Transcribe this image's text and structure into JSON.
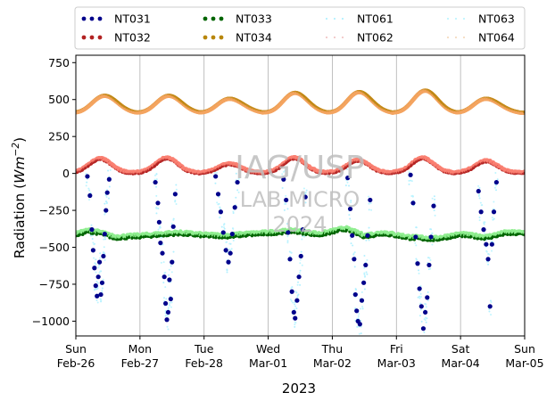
{
  "chart_data": {
    "type": "scatter",
    "xlabel": "2023",
    "ylabel_prefix": "Radiation (",
    "ylabel_unit_w": "Wm",
    "ylabel_unit_exp": "−2",
    "ylabel_suffix": ")",
    "ylim": [
      -1100,
      800
    ],
    "yticks": [
      -1000,
      -750,
      -500,
      -250,
      0,
      250,
      500,
      750
    ],
    "ytick_labels": [
      "−1000",
      "−750",
      "−500",
      "−250",
      "0",
      "250",
      "500",
      "750"
    ],
    "xlim": [
      0,
      7
    ],
    "x_unit": "days since Sun Feb-26 00:00",
    "xticks": [
      {
        "x": 0,
        "day": "Sun",
        "date": "Feb-26"
      },
      {
        "x": 1,
        "day": "Mon",
        "date": "Feb-27"
      },
      {
        "x": 2,
        "day": "Tue",
        "date": "Feb-28"
      },
      {
        "x": 3,
        "day": "Wed",
        "date": "Mar-01"
      },
      {
        "x": 4,
        "day": "Thu",
        "date": "Mar-02"
      },
      {
        "x": 5,
        "day": "Fri",
        "date": "Mar-03"
      },
      {
        "x": 6,
        "day": "Sat",
        "date": "Mar-04"
      },
      {
        "x": 7,
        "day": "Sun",
        "date": "Mar-05"
      }
    ],
    "grid": "vertical",
    "legend_position": "top, above plot, 4 columns",
    "watermark": [
      "IAG/USP",
      "LAB MICRO",
      "2024"
    ],
    "series": [
      {
        "name": "NT031",
        "style": "dots",
        "color": "#00008b",
        "points": [
          [
            0.18,
            -20
          ],
          [
            0.22,
            -150
          ],
          [
            0.25,
            -380
          ],
          [
            0.27,
            -520
          ],
          [
            0.29,
            -640
          ],
          [
            0.31,
            -760
          ],
          [
            0.33,
            -830
          ],
          [
            0.35,
            -700
          ],
          [
            0.37,
            -600
          ],
          [
            0.39,
            -820
          ],
          [
            0.41,
            -740
          ],
          [
            0.43,
            -560
          ],
          [
            0.45,
            -410
          ],
          [
            0.47,
            -250
          ],
          [
            0.49,
            -130
          ],
          [
            0.52,
            -40
          ],
          [
            1.24,
            -60
          ],
          [
            1.28,
            -200
          ],
          [
            1.3,
            -330
          ],
          [
            1.32,
            -470
          ],
          [
            1.35,
            -540
          ],
          [
            1.38,
            -700
          ],
          [
            1.4,
            -880
          ],
          [
            1.42,
            -990
          ],
          [
            1.44,
            -940
          ],
          [
            1.46,
            -720
          ],
          [
            1.48,
            -850
          ],
          [
            1.5,
            -600
          ],
          [
            1.52,
            -360
          ],
          [
            1.55,
            -140
          ],
          [
            2.18,
            -20
          ],
          [
            2.22,
            -140
          ],
          [
            2.26,
            -260
          ],
          [
            2.3,
            -400
          ],
          [
            2.34,
            -520
          ],
          [
            2.38,
            -600
          ],
          [
            2.41,
            -540
          ],
          [
            2.44,
            -410
          ],
          [
            2.48,
            -230
          ],
          [
            2.52,
            -60
          ],
          [
            3.24,
            -40
          ],
          [
            3.28,
            -180
          ],
          [
            3.31,
            -400
          ],
          [
            3.34,
            -580
          ],
          [
            3.37,
            -800
          ],
          [
            3.4,
            -940
          ],
          [
            3.42,
            -980
          ],
          [
            3.45,
            -860
          ],
          [
            3.48,
            -700
          ],
          [
            3.51,
            -560
          ],
          [
            3.54,
            -380
          ],
          [
            3.58,
            -160
          ],
          [
            4.24,
            -30
          ],
          [
            4.28,
            -240
          ],
          [
            4.31,
            -420
          ],
          [
            4.34,
            -580
          ],
          [
            4.36,
            -820
          ],
          [
            4.38,
            -930
          ],
          [
            4.4,
            -1000
          ],
          [
            4.43,
            -1020
          ],
          [
            4.46,
            -860
          ],
          [
            4.49,
            -740
          ],
          [
            4.52,
            -620
          ],
          [
            4.55,
            -420
          ],
          [
            4.59,
            -180
          ],
          [
            5.22,
            -10
          ],
          [
            5.26,
            -200
          ],
          [
            5.3,
            -430
          ],
          [
            5.33,
            -610
          ],
          [
            5.36,
            -780
          ],
          [
            5.39,
            -900
          ],
          [
            5.42,
            -1050
          ],
          [
            5.45,
            -940
          ],
          [
            5.48,
            -840
          ],
          [
            5.51,
            -620
          ],
          [
            5.54,
            -430
          ],
          [
            5.58,
            -220
          ],
          [
            6.28,
            -120
          ],
          [
            6.32,
            -260
          ],
          [
            6.36,
            -380
          ],
          [
            6.4,
            -480
          ],
          [
            6.43,
            -580
          ],
          [
            6.46,
            -900
          ],
          [
            6.49,
            -480
          ],
          [
            6.52,
            -260
          ],
          [
            6.56,
            -60
          ]
        ]
      },
      {
        "name": "NT032",
        "style": "dots",
        "color": "#b22222",
        "base": 0,
        "peaks": [
          [
            0.38,
            95
          ],
          [
            1.42,
            100
          ],
          [
            2.4,
            60
          ],
          [
            3.41,
            100
          ],
          [
            4.4,
            85
          ],
          [
            5.41,
            100
          ],
          [
            6.4,
            80
          ]
        ]
      },
      {
        "name": "NT033",
        "style": "dots",
        "color": "#006400",
        "base": -410,
        "points": [
          [
            0,
            -420
          ],
          [
            0.2,
            -395
          ],
          [
            0.4,
            -410
          ],
          [
            0.6,
            -440
          ],
          [
            1.0,
            -430
          ],
          [
            1.3,
            -420
          ],
          [
            1.6,
            -410
          ],
          [
            2.0,
            -425
          ],
          [
            2.4,
            -430
          ],
          [
            2.6,
            -420
          ],
          [
            3.0,
            -410
          ],
          [
            3.4,
            -395
          ],
          [
            3.8,
            -420
          ],
          [
            4.2,
            -380
          ],
          [
            4.5,
            -430
          ],
          [
            4.8,
            -410
          ],
          [
            5.2,
            -440
          ],
          [
            5.6,
            -450
          ],
          [
            6.0,
            -420
          ],
          [
            6.4,
            -440
          ],
          [
            6.7,
            -410
          ],
          [
            7,
            -410
          ]
        ]
      },
      {
        "name": "NT034",
        "style": "dots",
        "color": "#b8860b",
        "base": 430,
        "peaks": [
          [
            0.45,
            530
          ],
          [
            1.45,
            530
          ],
          [
            2.4,
            510
          ],
          [
            3.42,
            550
          ],
          [
            4.42,
            555
          ],
          [
            5.45,
            565
          ],
          [
            6.4,
            510
          ]
        ]
      },
      {
        "name": "NT061",
        "style": "faint",
        "color": "#b3f0ff"
      },
      {
        "name": "NT062",
        "style": "faint",
        "color": "#f2c7c7"
      },
      {
        "name": "NT063",
        "style": "faint",
        "color": "#bff5ff"
      },
      {
        "name": "NT064",
        "style": "faint",
        "color": "#f5dcc0"
      }
    ]
  }
}
